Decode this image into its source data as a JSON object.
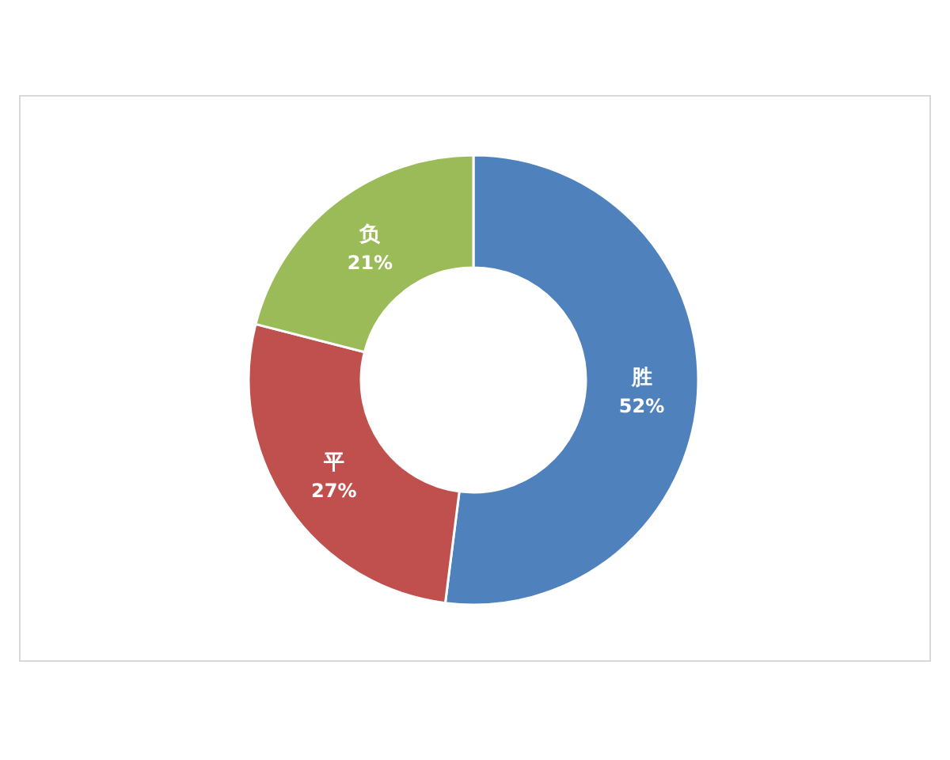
{
  "chart_data": {
    "type": "donut",
    "categories": [
      "胜",
      "平",
      "负"
    ],
    "values": [
      52,
      27,
      21
    ],
    "colors": [
      "#4f81bd",
      "#c0504d",
      "#9bbb59"
    ],
    "value_labels": [
      "52%",
      "27%",
      "21%"
    ]
  }
}
